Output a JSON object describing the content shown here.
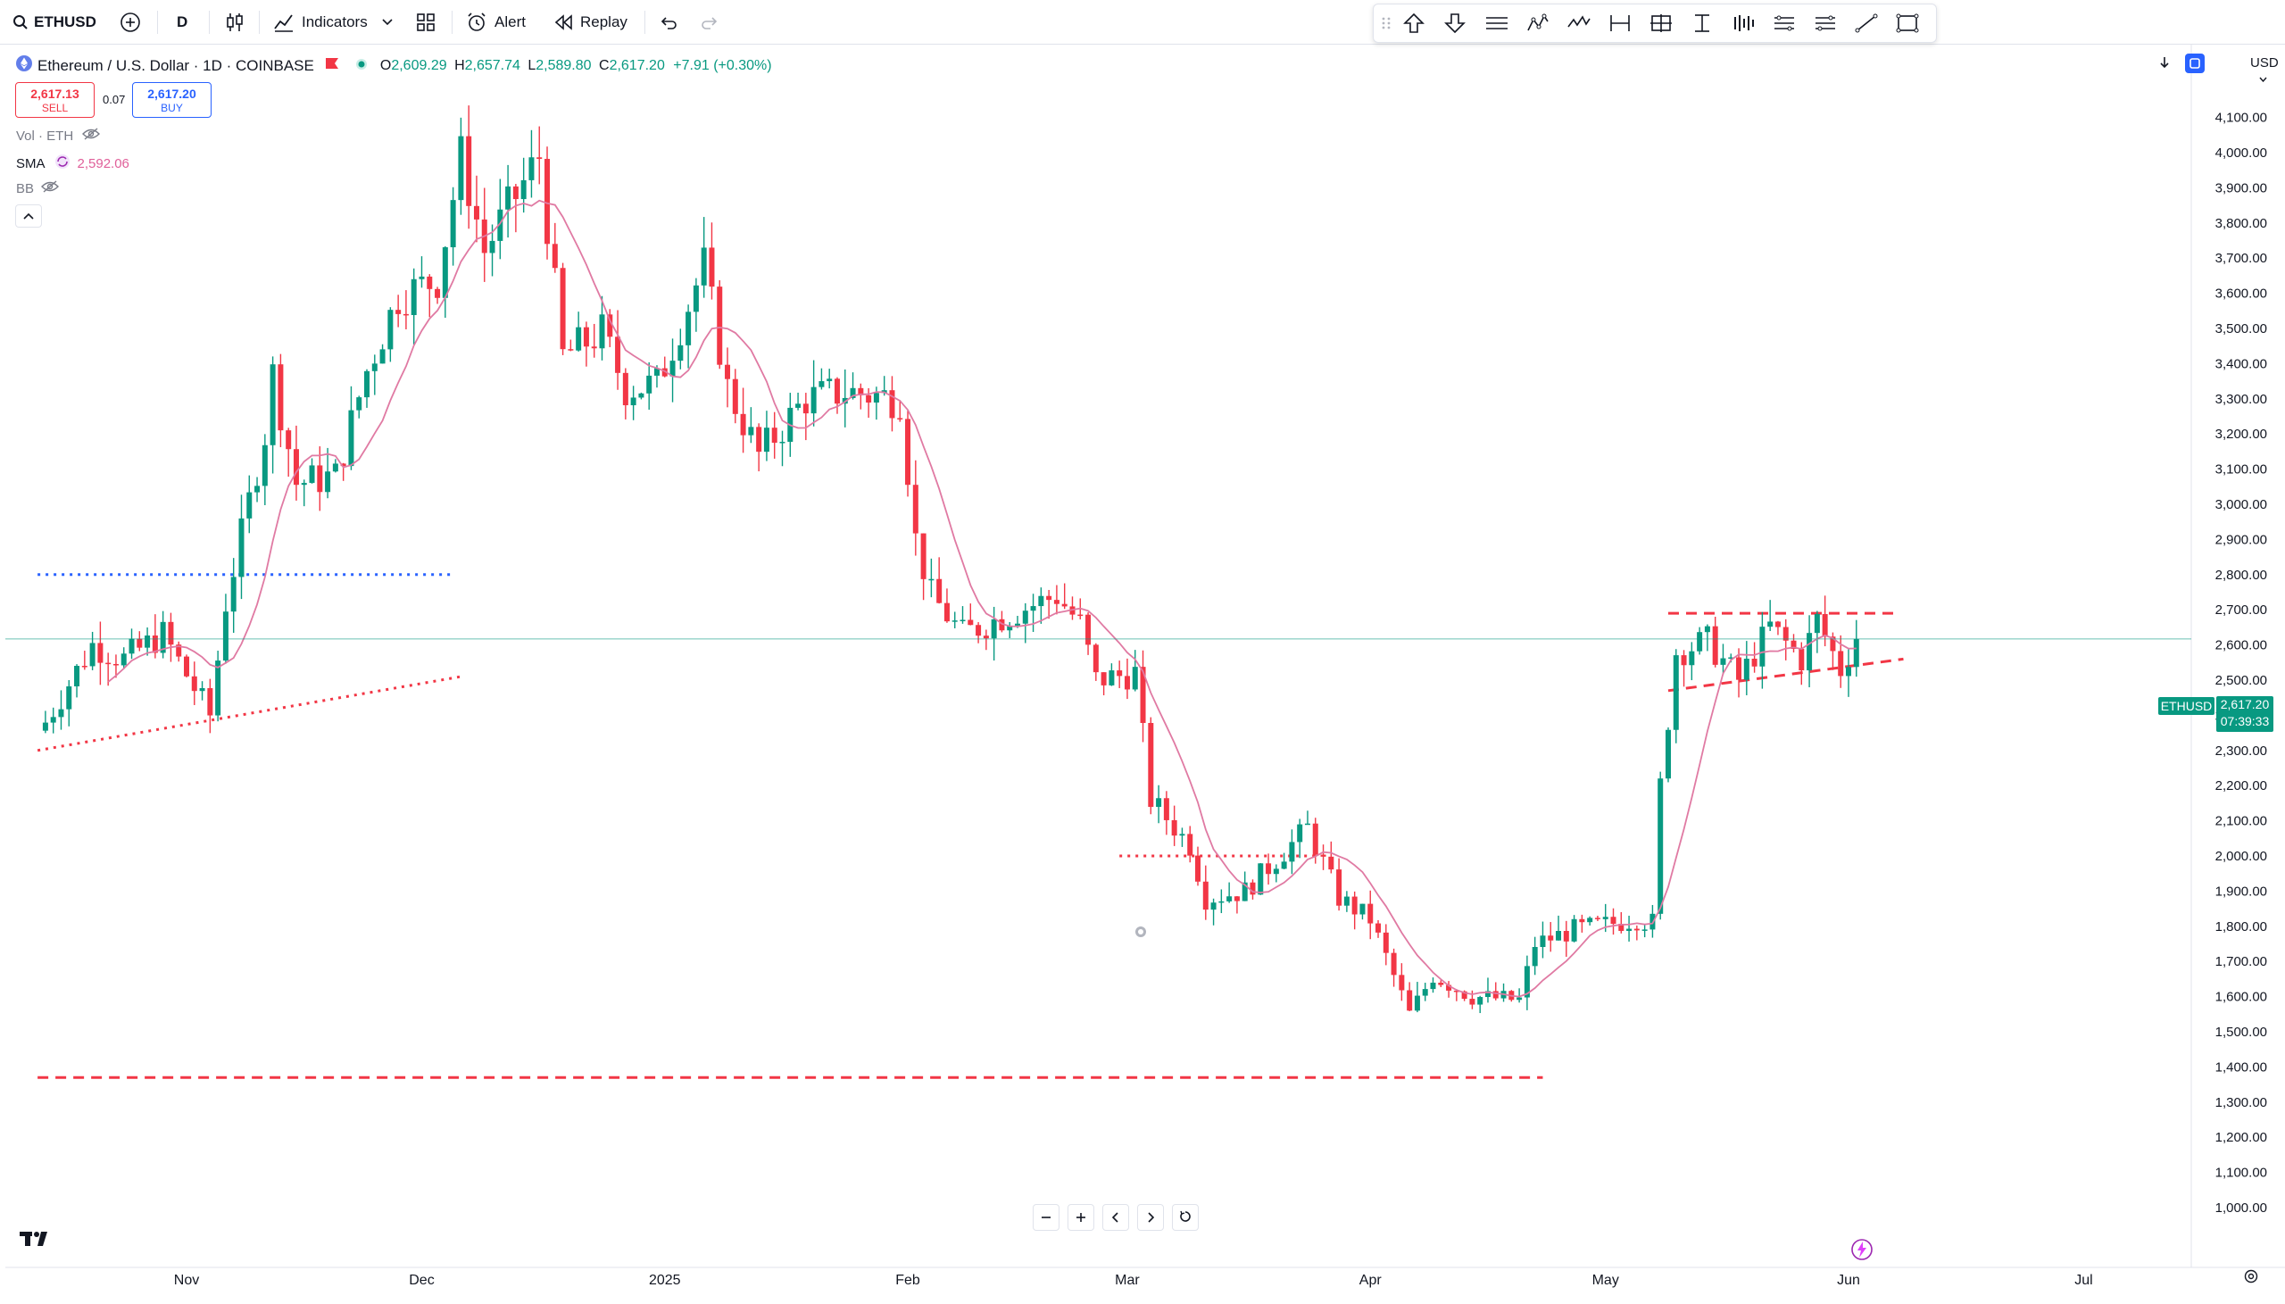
{
  "toolbar": {
    "symbol": "ETHUSD",
    "interval": "D",
    "indicators_label": "Indicators",
    "alert_label": "Alert",
    "replay_label": "Replay"
  },
  "legend": {
    "title": "Ethereum / U.S. Dollar · 1D · COINBASE",
    "o_label": "O",
    "o_value": "2,609.29",
    "h_label": "H",
    "h_value": "2,657.74",
    "l_label": "L",
    "l_value": "2,589.80",
    "c_label": "C",
    "c_value": "2,617.20",
    "change": "+7.91 (+0.30%)"
  },
  "trade": {
    "sell_price": "2,617.13",
    "sell_label": "SELL",
    "spread": "0.07",
    "buy_price": "2,617.20",
    "buy_label": "BUY"
  },
  "indicators": {
    "vol_label": "Vol · ETH",
    "sma_label": "SMA",
    "sma_value": "2,592.06",
    "bb_label": "BB"
  },
  "price_axis": {
    "currency": "USD",
    "last_symbol": "ETHUSD",
    "last_price": "2,617.20",
    "countdown": "07:39:33"
  },
  "colors": {
    "up": "#089981",
    "down": "#f23645",
    "sma": "#e07aa3",
    "blue_level": "#2962ff",
    "accent": "#2962ff"
  },
  "chart_data": {
    "type": "candlestick",
    "symbol": "ETHUSD",
    "title": "Ethereum / U.S. Dollar · 1D · COINBASE",
    "ylim": [
      950,
      4500
    ],
    "yticks": [
      1000,
      1100,
      1200,
      1300,
      1400,
      1500,
      1600,
      1700,
      1800,
      1900,
      2000,
      2100,
      2200,
      2300,
      2400,
      2500,
      2600,
      2700,
      2800,
      2900,
      3000,
      3100,
      3200,
      3300,
      3400,
      3500,
      3600,
      3700,
      3800,
      3900,
      4000,
      4100,
      4200,
      4300,
      4400,
      4500
    ],
    "xticks": [
      {
        "label": "Nov",
        "date": "2024-11-01"
      },
      {
        "label": "Dec",
        "date": "2024-12-01"
      },
      {
        "label": "2025",
        "date": "2025-01-01"
      },
      {
        "label": "Feb",
        "date": "2025-02-01"
      },
      {
        "label": "Mar",
        "date": "2025-03-01"
      },
      {
        "label": "Apr",
        "date": "2025-04-01"
      },
      {
        "label": "May",
        "date": "2025-05-01"
      },
      {
        "label": "Jun",
        "date": "2025-06-01"
      },
      {
        "label": "Jul",
        "date": "2025-07-01"
      }
    ],
    "close_anchors": [
      {
        "date": "2024-10-14",
        "close": 2380
      },
      {
        "date": "2024-10-20",
        "close": 2600
      },
      {
        "date": "2024-10-24",
        "close": 2560
      },
      {
        "date": "2024-10-29",
        "close": 2630
      },
      {
        "date": "2024-11-04",
        "close": 2400
      },
      {
        "date": "2024-11-06",
        "close": 2720
      },
      {
        "date": "2024-11-11",
        "close": 3200
      },
      {
        "date": "2024-11-12",
        "close": 3370
      },
      {
        "date": "2024-11-15",
        "close": 3060
      },
      {
        "date": "2024-11-20",
        "close": 3080
      },
      {
        "date": "2024-11-24",
        "close": 3380
      },
      {
        "date": "2024-11-28",
        "close": 3590
      },
      {
        "date": "2024-12-03",
        "close": 3640
      },
      {
        "date": "2024-12-06",
        "close": 3990
      },
      {
        "date": "2024-12-09",
        "close": 3720
      },
      {
        "date": "2024-12-11",
        "close": 3800
      },
      {
        "date": "2024-12-16",
        "close": 3990
      },
      {
        "date": "2024-12-19",
        "close": 3420
      },
      {
        "date": "2024-12-24",
        "close": 3490
      },
      {
        "date": "2024-12-27",
        "close": 3330
      },
      {
        "date": "2024-12-31",
        "close": 3340
      },
      {
        "date": "2025-01-06",
        "close": 3680
      },
      {
        "date": "2025-01-09",
        "close": 3330
      },
      {
        "date": "2025-01-13",
        "close": 3140
      },
      {
        "date": "2025-01-19",
        "close": 3300
      },
      {
        "date": "2025-01-24",
        "close": 3320
      },
      {
        "date": "2025-01-31",
        "close": 3300
      },
      {
        "date": "2025-02-02",
        "close": 2900
      },
      {
        "date": "2025-02-04",
        "close": 2740
      },
      {
        "date": "2025-02-08",
        "close": 2630
      },
      {
        "date": "2025-02-13",
        "close": 2680
      },
      {
        "date": "2025-02-20",
        "close": 2740
      },
      {
        "date": "2025-02-23",
        "close": 2660
      },
      {
        "date": "2025-02-25",
        "close": 2500
      },
      {
        "date": "2025-03-02",
        "close": 2520
      },
      {
        "date": "2025-03-04",
        "close": 2160
      },
      {
        "date": "2025-03-09",
        "close": 2030
      },
      {
        "date": "2025-03-11",
        "close": 1880
      },
      {
        "date": "2025-03-16",
        "close": 1900
      },
      {
        "date": "2025-03-24",
        "close": 2080
      },
      {
        "date": "2025-03-28",
        "close": 1880
      },
      {
        "date": "2025-04-01",
        "close": 1820
      },
      {
        "date": "2025-04-06",
        "close": 1550
      },
      {
        "date": "2025-04-09",
        "close": 1660
      },
      {
        "date": "2025-04-14",
        "close": 1600
      },
      {
        "date": "2025-04-20",
        "close": 1590
      },
      {
        "date": "2025-04-22",
        "close": 1750
      },
      {
        "date": "2025-04-27",
        "close": 1790
      },
      {
        "date": "2025-05-05",
        "close": 1820
      },
      {
        "date": "2025-05-07",
        "close": 1810
      },
      {
        "date": "2025-05-08",
        "close": 2200
      },
      {
        "date": "2025-05-10",
        "close": 2580
      },
      {
        "date": "2025-05-14",
        "close": 2610
      },
      {
        "date": "2025-05-18",
        "close": 2500
      },
      {
        "date": "2025-05-22",
        "close": 2650
      },
      {
        "date": "2025-05-26",
        "close": 2560
      },
      {
        "date": "2025-05-28",
        "close": 2670
      },
      {
        "date": "2025-05-31",
        "close": 2530
      },
      {
        "date": "2025-06-02",
        "close": 2617
      }
    ],
    "sma_last": 2592.06,
    "last_price": 2617.2,
    "levels": [
      {
        "style": "dotted",
        "color": "#2962ff",
        "price": 2800,
        "from": "2024-10-13",
        "to": "2024-12-05"
      },
      {
        "style": "dotted",
        "color": "#f23645",
        "p1": 2300,
        "d1": "2024-10-13",
        "p2": 2510,
        "d2": "2024-12-06"
      },
      {
        "style": "dotted",
        "color": "#f23645",
        "price": 2000,
        "from": "2025-02-28",
        "to": "2025-03-25"
      },
      {
        "style": "dashed",
        "color": "#f23645",
        "price": 1370,
        "from": "2024-10-13",
        "to": "2025-04-23"
      },
      {
        "style": "dashed",
        "color": "#f23645",
        "price": 2690,
        "from": "2025-05-09",
        "to": "2025-06-07"
      },
      {
        "style": "dashed",
        "color": "#f23645",
        "p1": 2470,
        "d1": "2025-05-09",
        "p2": 2560,
        "d2": "2025-06-08"
      }
    ]
  }
}
